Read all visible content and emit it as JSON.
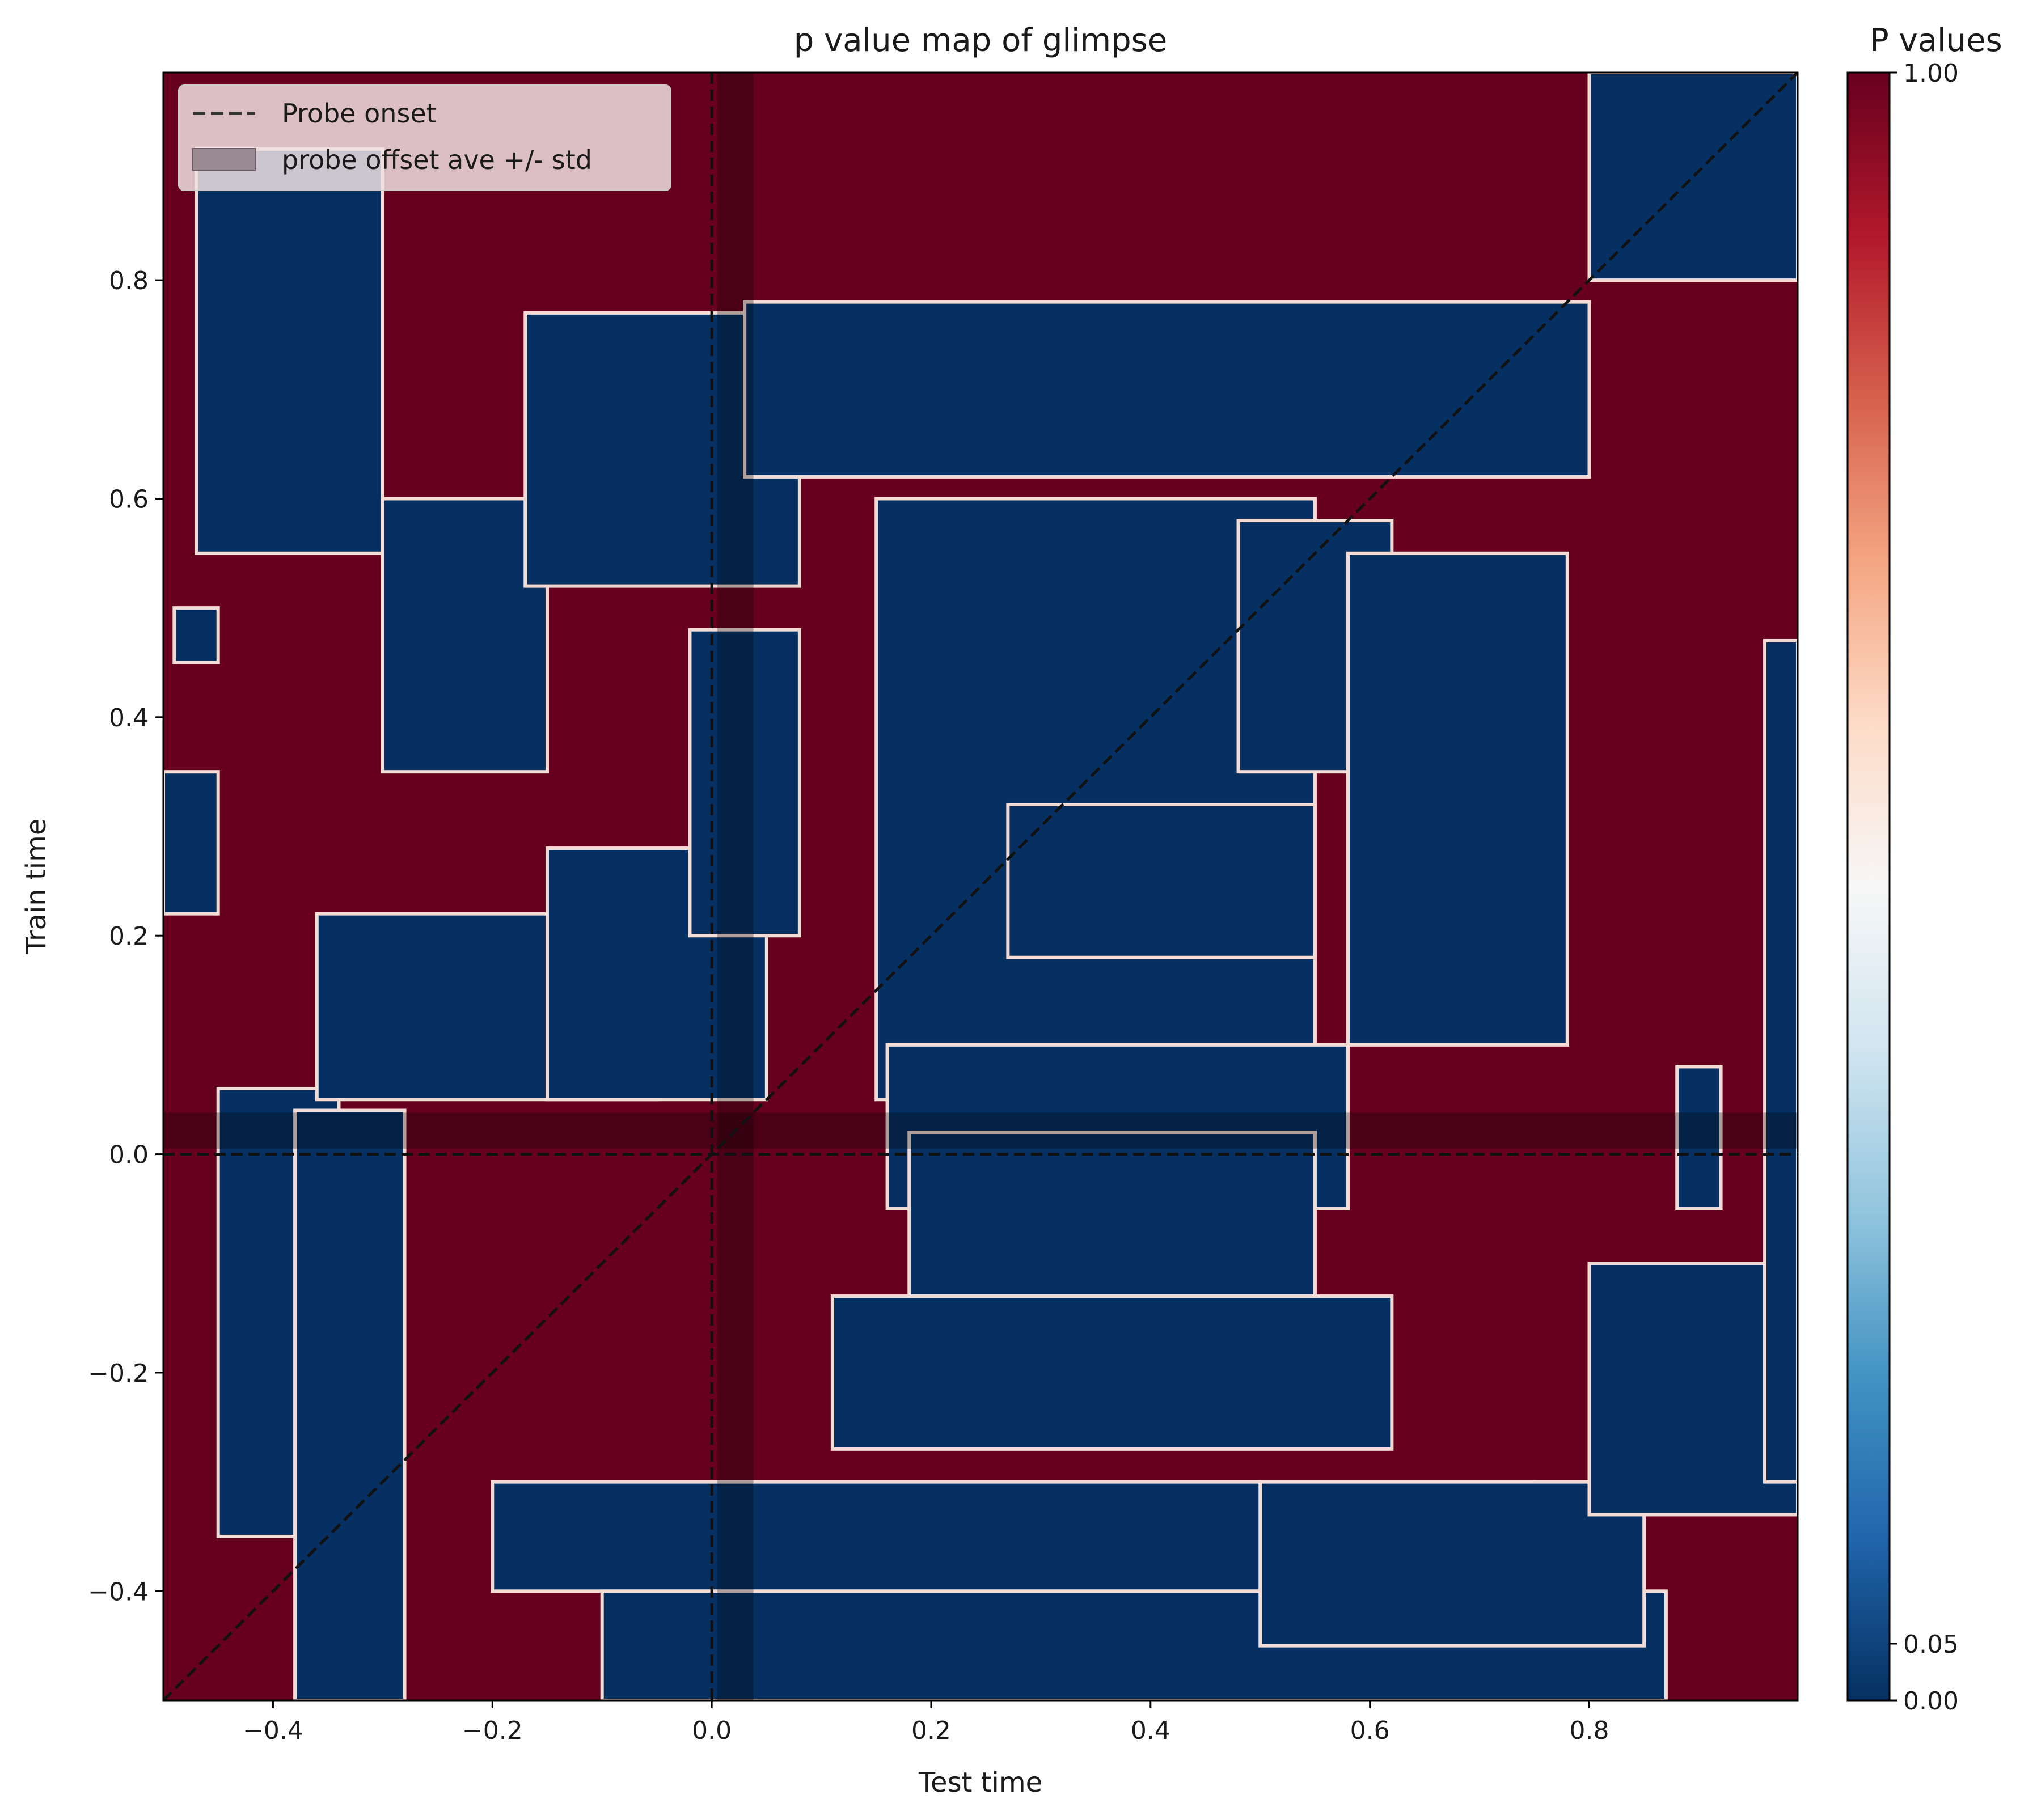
{
  "chart_data": {
    "type": "heatmap",
    "title": "p value map of glimpse",
    "xlabel": "Test time",
    "ylabel": "Train time",
    "xlim": [
      -0.5,
      0.99
    ],
    "ylim": [
      -0.5,
      0.99
    ],
    "xticks": [
      -0.4,
      -0.2,
      0.0,
      0.2,
      0.4,
      0.6,
      0.8
    ],
    "xtick_labels": [
      "−0.4",
      "−0.2",
      "0.0",
      "0.2",
      "0.4",
      "0.6",
      "0.8"
    ],
    "yticks": [
      -0.4,
      -0.2,
      0.0,
      0.2,
      0.4,
      0.6,
      0.8
    ],
    "ytick_labels": [
      "−0.4",
      "−0.2",
      "0.0",
      "0.2",
      "0.4",
      "0.6",
      "0.8"
    ],
    "colorbar": {
      "title": "P values",
      "ticks": [
        0.0,
        0.05,
        1.0
      ],
      "tick_labels": [
        "0.00",
        "0.05",
        "1.00"
      ],
      "colormap": "RdBu_r",
      "colors": [
        "#053061",
        "#2166ac",
        "#4393c3",
        "#92c5de",
        "#d1e5f0",
        "#f7f7f7",
        "#fddbc7",
        "#f4a582",
        "#d6604d",
        "#b2182b",
        "#67001f"
      ]
    },
    "significant_color": "#053061",
    "nonsignificant_color": "#67001f",
    "contour_color": "#f3dcd6",
    "significant_blobs": [
      {
        "x": [
          -0.47,
          -0.3
        ],
        "y": [
          0.55,
          0.92
        ]
      },
      {
        "x": [
          -0.45,
          -0.34
        ],
        "y": [
          -0.35,
          0.06
        ]
      },
      {
        "x": [
          -0.38,
          -0.28
        ],
        "y": [
          -0.5,
          0.04
        ]
      },
      {
        "x": [
          -0.36,
          -0.05
        ],
        "y": [
          0.05,
          0.22
        ]
      },
      {
        "x": [
          -0.15,
          0.05
        ],
        "y": [
          0.05,
          0.28
        ]
      },
      {
        "x": [
          -0.3,
          -0.15
        ],
        "y": [
          0.35,
          0.6
        ]
      },
      {
        "x": [
          -0.17,
          0.08
        ],
        "y": [
          0.52,
          0.77
        ]
      },
      {
        "x": [
          -0.02,
          0.08
        ],
        "y": [
          0.2,
          0.48
        ]
      },
      {
        "x": [
          0.03,
          0.8
        ],
        "y": [
          0.62,
          0.78
        ]
      },
      {
        "x": [
          0.15,
          0.55
        ],
        "y": [
          0.05,
          0.6
        ]
      },
      {
        "x": [
          0.16,
          0.58
        ],
        "y": [
          -0.05,
          0.1
        ]
      },
      {
        "x": [
          0.27,
          0.55
        ],
        "y": [
          0.18,
          0.32
        ]
      },
      {
        "x": [
          0.48,
          0.62
        ],
        "y": [
          0.35,
          0.58
        ]
      },
      {
        "x": [
          0.58,
          0.78
        ],
        "y": [
          0.1,
          0.55
        ]
      },
      {
        "x": [
          0.18,
          0.55
        ],
        "y": [
          -0.13,
          0.02
        ]
      },
      {
        "x": [
          0.11,
          0.62
        ],
        "y": [
          -0.27,
          -0.13
        ]
      },
      {
        "x": [
          -0.2,
          0.75
        ],
        "y": [
          -0.4,
          -0.3
        ]
      },
      {
        "x": [
          -0.1,
          0.87
        ],
        "y": [
          -0.5,
          -0.4
        ]
      },
      {
        "x": [
          0.5,
          0.85
        ],
        "y": [
          -0.45,
          -0.3
        ]
      },
      {
        "x": [
          0.8,
          0.99
        ],
        "y": [
          -0.33,
          -0.1
        ]
      },
      {
        "x": [
          0.96,
          0.99
        ],
        "y": [
          -0.3,
          0.47
        ]
      },
      {
        "x": [
          0.8,
          0.99
        ],
        "y": [
          0.8,
          0.99
        ]
      },
      {
        "x": [
          -0.49,
          -0.45
        ],
        "y": [
          0.45,
          0.5
        ]
      },
      {
        "x": [
          -0.5,
          -0.45
        ],
        "y": [
          0.22,
          0.35
        ]
      },
      {
        "x": [
          0.88,
          0.92
        ],
        "y": [
          -0.05,
          0.08
        ]
      }
    ],
    "probe_onset": 0.0,
    "probe_offset_range": [
      0.005,
      0.038
    ],
    "legend": {
      "position": "upper left",
      "entries": [
        "Probe onset",
        "probe offset ave +/- std"
      ]
    }
  }
}
